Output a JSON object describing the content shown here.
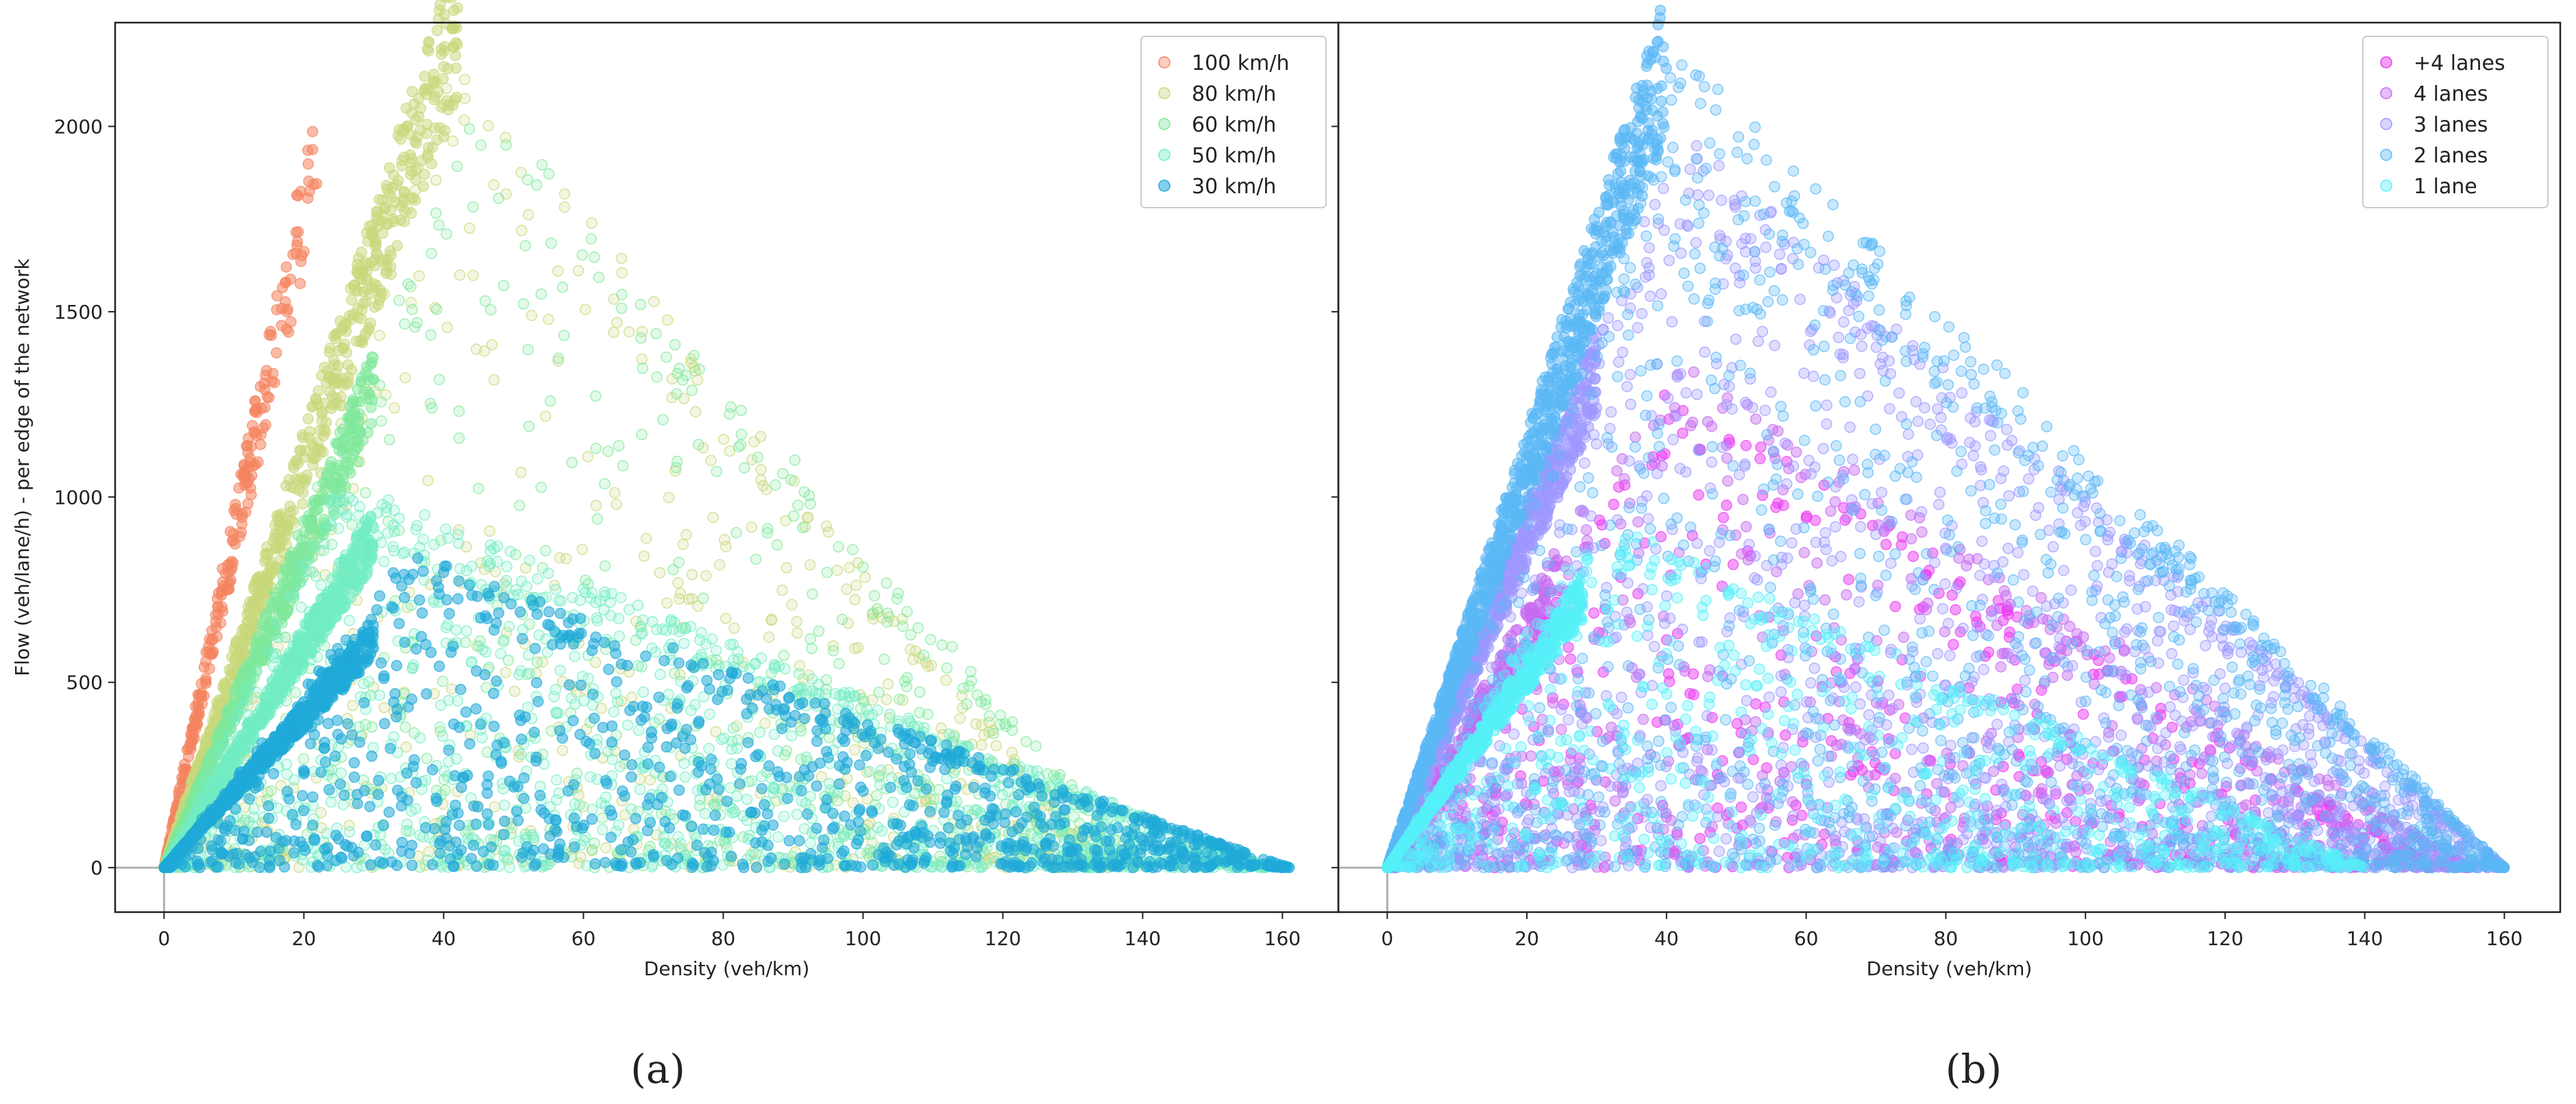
{
  "figure": {
    "panel_labels": [
      "(a)",
      "(b)"
    ]
  },
  "chart_data": [
    {
      "type": "scatter",
      "panel": "(a)",
      "xlabel": "Density (veh/km)",
      "ylabel": "Flow (veh/lane/h) - per edge of the network",
      "xlim": [
        -7,
        168
      ],
      "ylim": [
        -120,
        2280
      ],
      "xticks": [
        0,
        20,
        40,
        60,
        80,
        100,
        120,
        140,
        160
      ],
      "yticks": [
        0,
        500,
        1000,
        1500,
        2000
      ],
      "grid": false,
      "legend_position": "top-right",
      "series": [
        {
          "name": "100 km/h",
          "color": "#f4845f",
          "sparse_alpha": 0.3,
          "dense_alpha": 0.55,
          "point_count": 260,
          "line_fraction": 0.95,
          "line": {
            "slope": 95,
            "xmax": 22
          },
          "scatter": null
        },
        {
          "name": "80 km/h",
          "color": "#c8d87a",
          "sparse_alpha": 0.22,
          "dense_alpha": 0.5,
          "point_count": 1300,
          "line_fraction": 0.55,
          "line": {
            "slope": 58,
            "xmax": 42
          },
          "scatter": {
            "peak_x": 42,
            "peak_y": 2200,
            "x_end": 135
          }
        },
        {
          "name": "60 km/h",
          "color": "#7fe89a",
          "sparse_alpha": 0.22,
          "dense_alpha": 0.5,
          "point_count": 1100,
          "line_fraction": 0.5,
          "line": {
            "slope": 46,
            "xmax": 30
          },
          "scatter": {
            "peak_x": 45,
            "peak_y": 2100,
            "x_end": 140
          }
        },
        {
          "name": "50 km/h",
          "color": "#72edc3",
          "sparse_alpha": 0.22,
          "dense_alpha": 0.45,
          "point_count": 2200,
          "line_fraction": 0.35,
          "line": {
            "slope": 32,
            "xmax": 30
          },
          "scatter": {
            "peak_x": 25,
            "peak_y": 1050,
            "x_end": 158
          }
        },
        {
          "name": "30 km/h",
          "color": "#1fa9d8",
          "sparse_alpha": 0.55,
          "dense_alpha": 0.7,
          "point_count": 1800,
          "line_fraction": 0.35,
          "line": {
            "slope": 22,
            "xmax": 30
          },
          "scatter": {
            "peak_x": 35,
            "peak_y": 850,
            "x_end": 161
          }
        }
      ]
    },
    {
      "type": "scatter",
      "panel": "(b)",
      "xlabel": "Density (veh/km)",
      "ylabel": "",
      "xlim": [
        -7,
        168
      ],
      "ylim": [
        -120,
        2280
      ],
      "xticks": [
        0,
        20,
        40,
        60,
        80,
        100,
        120,
        140,
        160
      ],
      "yticks": [
        0,
        500,
        1000,
        1500,
        2000
      ],
      "grid": false,
      "legend_position": "top-right",
      "series": [
        {
          "name": "+4 lanes",
          "color": "#ea3cf2",
          "sparse_alpha": 0.5,
          "dense_alpha": 0.6,
          "point_count": 700,
          "line_fraction": 0.2,
          "line": {
            "slope": 30,
            "xmax": 25
          },
          "scatter": {
            "peak_x": 40,
            "peak_y": 1300,
            "x_end": 150
          }
        },
        {
          "name": "4 lanes",
          "color": "#c66cf0",
          "sparse_alpha": 0.45,
          "dense_alpha": 0.55,
          "point_count": 900,
          "line_fraction": 0.25,
          "line": {
            "slope": 35,
            "xmax": 25
          },
          "scatter": {
            "peak_x": 40,
            "peak_y": 1400,
            "x_end": 155
          }
        },
        {
          "name": "3 lanes",
          "color": "#9d97ff",
          "sparse_alpha": 0.32,
          "dense_alpha": 0.5,
          "point_count": 2300,
          "line_fraction": 0.35,
          "line": {
            "slope": 48,
            "xmax": 30
          },
          "scatter": {
            "peak_x": 42,
            "peak_y": 2000,
            "x_end": 160
          }
        },
        {
          "name": "2 lanes",
          "color": "#5ab8f5",
          "sparse_alpha": 0.32,
          "dense_alpha": 0.5,
          "point_count": 2600,
          "line_fraction": 0.4,
          "line": {
            "slope": 58,
            "xmax": 40
          },
          "scatter": {
            "peak_x": 42,
            "peak_y": 2210,
            "x_end": 160
          }
        },
        {
          "name": "1 lane",
          "color": "#55f0f8",
          "sparse_alpha": 0.35,
          "dense_alpha": 0.55,
          "point_count": 1500,
          "line_fraction": 0.45,
          "line": {
            "slope": 28,
            "xmax": 28
          },
          "scatter": {
            "peak_x": 30,
            "peak_y": 950,
            "x_end": 140
          }
        }
      ]
    }
  ]
}
